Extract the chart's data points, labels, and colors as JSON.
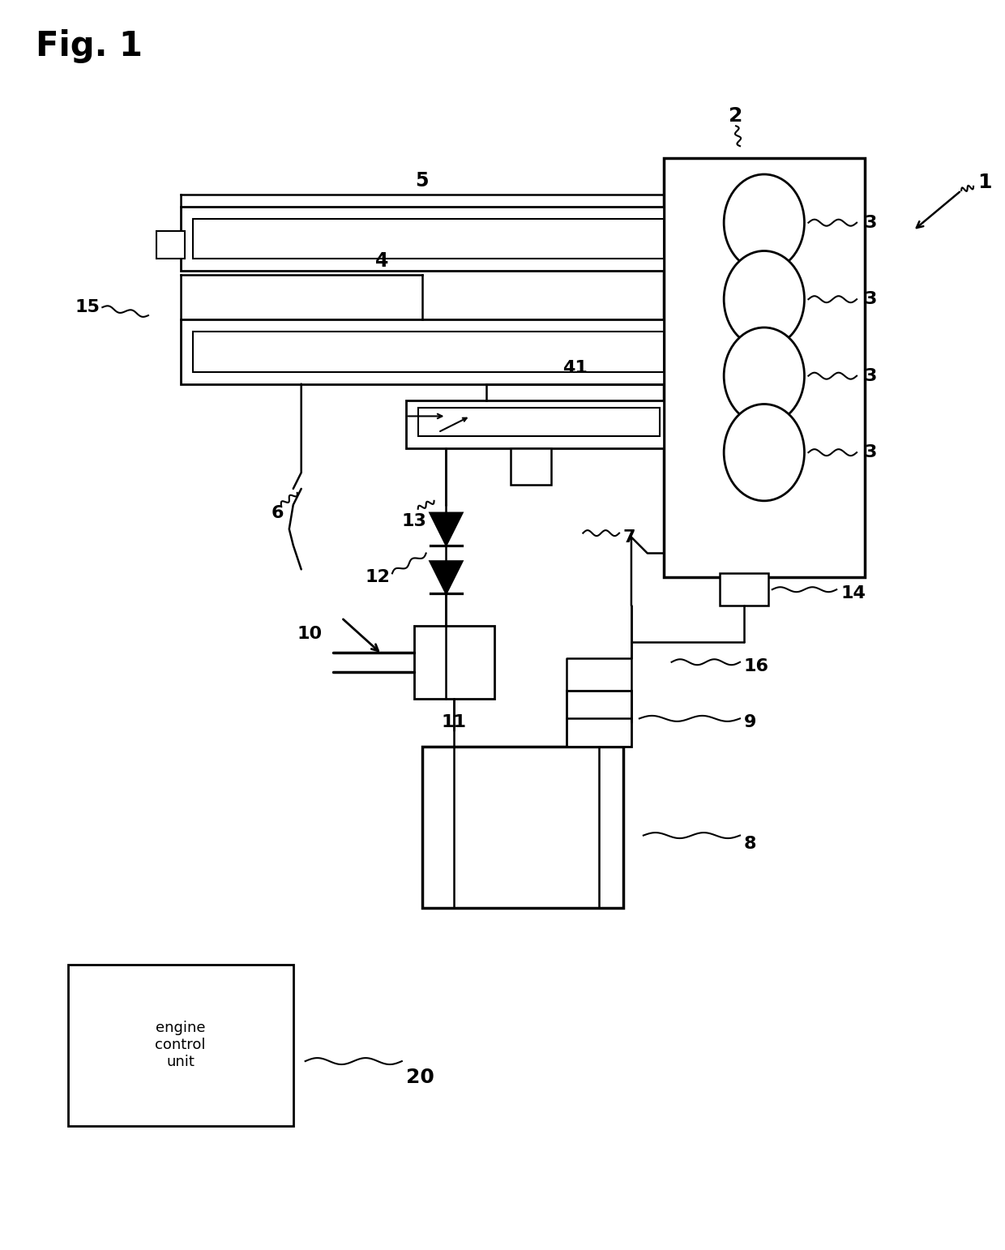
{
  "fig_label": "Fig. 1",
  "bg": "#ffffff",
  "lc": "#000000",
  "fig_w": 12.4,
  "fig_h": 15.42,
  "labels": {
    "fig": "Fig. 1",
    "1": "1",
    "2": "2",
    "3": "3",
    "4": "4",
    "5": "5",
    "6": "6",
    "7": "7",
    "8": "8",
    "9": "9",
    "10": "10",
    "11": "11",
    "12": "12",
    "13": "13",
    "14": "14",
    "15": "15",
    "16": "16",
    "20": "20",
    "41": "41",
    "ecu": "engine\ncontrol\nunit"
  }
}
